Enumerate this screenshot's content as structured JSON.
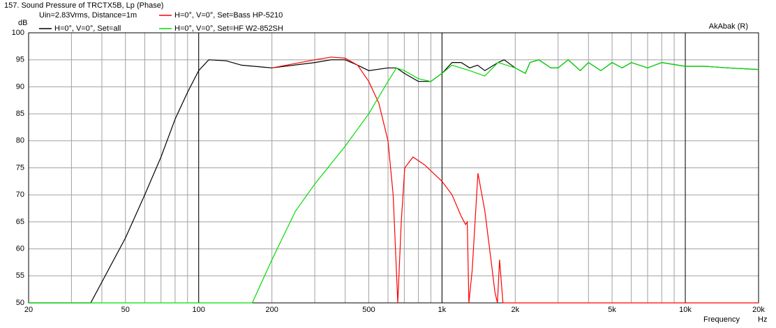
{
  "chart_data": {
    "type": "line",
    "log_x": true,
    "title": "157. Sound Pressure of TRCTX5B, Lp (Phase)",
    "subtitle": "Uin=2.83Vrms, Distance=1m",
    "annotation": "AkAbak (R)",
    "y_label": "dB",
    "x_label": "Frequency",
    "x_unit": "Hz",
    "xlim": [
      20,
      20000
    ],
    "ylim": [
      50,
      100
    ],
    "xticks": [
      20,
      50,
      100,
      200,
      500,
      {
        "value": 1000,
        "label": "1k"
      },
      {
        "value": 2000,
        "label": "2k"
      },
      {
        "value": 5000,
        "label": "5k"
      },
      {
        "value": 10000,
        "label": "10k"
      },
      {
        "value": 20000,
        "label": "20k"
      }
    ],
    "xgrid_minor": [
      30,
      40,
      60,
      70,
      80,
      90,
      300,
      400,
      600,
      700,
      800,
      900,
      3000,
      4000,
      6000,
      7000,
      8000,
      9000
    ],
    "xgrid_major": [
      100,
      1000,
      10000
    ],
    "yticks": [
      50,
      55,
      60,
      65,
      70,
      75,
      80,
      85,
      90,
      95,
      100
    ],
    "grid": true,
    "series": [
      {
        "name": "H=0°, V=0°, Set=all",
        "color": "#000000",
        "x": [
          20,
          36,
          50,
          60,
          70,
          80,
          90,
          100,
          110,
          130,
          150,
          200,
          300,
          350,
          400,
          450,
          500,
          600,
          650,
          700,
          800,
          900,
          1000,
          1100,
          1200,
          1300,
          1400,
          1500,
          1700,
          1800,
          2000,
          2200,
          2300,
          2500,
          2800,
          3000,
          3300,
          3700,
          4000,
          4500,
          5000,
          5500,
          6000,
          7000,
          8000,
          10000,
          12000,
          15000,
          20000
        ],
        "values": [
          50,
          50,
          62,
          70,
          77,
          84,
          89,
          93,
          95,
          94.8,
          94,
          93.5,
          94.5,
          95,
          95,
          94,
          93,
          93.5,
          93.5,
          92.5,
          91,
          91,
          92.5,
          94.5,
          94.5,
          93.5,
          94,
          93,
          94.5,
          95,
          93.5,
          92.5,
          94.5,
          95,
          93.5,
          93.5,
          95,
          93,
          94.5,
          93,
          94.5,
          93.5,
          94.5,
          93.5,
          94.5,
          93.8,
          93.8,
          93.5,
          93.2
        ]
      },
      {
        "name": "H=0°, V=0°, Set=Bass HP-5210",
        "color": "#ff0000",
        "x": [
          200,
          300,
          350,
          400,
          450,
          500,
          550,
          600,
          630,
          658,
          680,
          703,
          760,
          850,
          1000,
          1100,
          1200,
          1250,
          1270,
          1290,
          1330,
          1405,
          1500,
          1600,
          1650,
          1690,
          1725,
          1780,
          20000
        ],
        "values": [
          93.5,
          95,
          95.5,
          95.3,
          94,
          91,
          87,
          80,
          70,
          50,
          65,
          75,
          77,
          75.5,
          72.5,
          70,
          66,
          64.5,
          65,
          50,
          56,
          74,
          67,
          57,
          52,
          50,
          58,
          50,
          50
        ]
      },
      {
        "name": "H=0°, V=0°, Set=HF W2-852SH",
        "color": "#00dd00",
        "x": [
          20,
          166,
          200,
          250,
          300,
          400,
          500,
          600,
          650,
          700,
          800,
          900,
          1000,
          1100,
          1300,
          1500,
          1700,
          2000,
          2200,
          2300,
          2500,
          2800,
          3000,
          3300,
          3700,
          4000,
          4500,
          5000,
          5500,
          6000,
          7000,
          8000,
          10000,
          12000,
          15000,
          20000
        ],
        "values": [
          50,
          50,
          58,
          67,
          72,
          79,
          85,
          91,
          93.5,
          93,
          91.5,
          91,
          92.5,
          94,
          93,
          92,
          94.5,
          93.5,
          92.5,
          94.5,
          95,
          93.5,
          93.5,
          95,
          93,
          94.5,
          93,
          94.5,
          93.5,
          94.5,
          93.5,
          94.5,
          93.8,
          93.8,
          93.5,
          93.2
        ]
      }
    ]
  }
}
